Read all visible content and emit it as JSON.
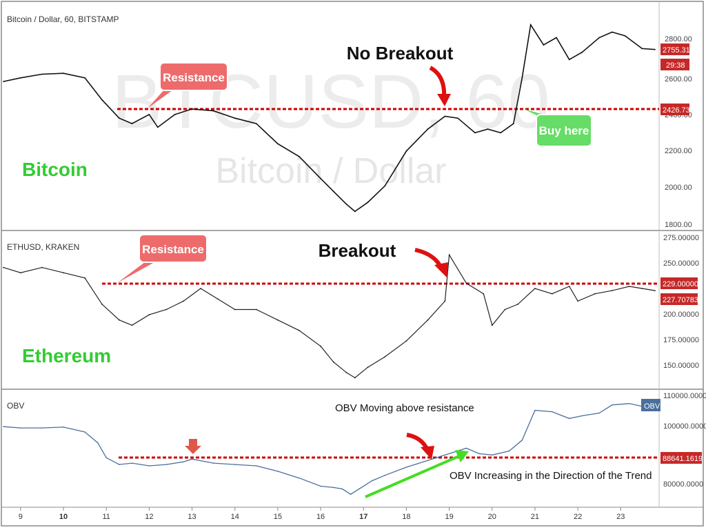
{
  "chart_data": [
    {
      "type": "line",
      "title": "Bitcoin / Dollar, 60, BITSTAMP",
      "watermark": [
        "BTCUSD, 60",
        "Bitcoin / Dollar"
      ],
      "side_label": "Bitcoin",
      "yticks": [
        "2800.00",
        "2600.00",
        "2400.00",
        "2200.00",
        "2000.00",
        "1800.00"
      ],
      "ylim": [
        1800,
        2950
      ],
      "resistance": 2426.73,
      "price_tags": [
        "2755.31",
        "29:38",
        "2426.73"
      ],
      "annotations": [
        "Resistance",
        "No Breakout",
        "Buy here"
      ],
      "x": [
        8.6,
        9.0,
        9.5,
        10.0,
        10.5,
        10.9,
        11.3,
        11.6,
        12.0,
        12.2,
        12.6,
        13.0,
        13.5,
        14.0,
        14.5,
        15.0,
        15.5,
        16.0,
        16.3,
        16.6,
        16.8,
        17.1,
        17.5,
        18.0,
        18.5,
        18.9,
        19.2,
        19.6,
        19.9,
        20.2,
        20.5,
        20.7,
        20.9,
        21.2,
        21.5,
        21.8,
        22.1,
        22.5,
        22.8,
        23.1,
        23.5,
        23.8
      ],
      "y": [
        2580,
        2600,
        2620,
        2625,
        2600,
        2480,
        2380,
        2350,
        2400,
        2330,
        2400,
        2430,
        2420,
        2380,
        2350,
        2240,
        2170,
        2050,
        1980,
        1910,
        1870,
        1920,
        2010,
        2200,
        2320,
        2390,
        2380,
        2300,
        2320,
        2300,
        2350,
        2600,
        2890,
        2780,
        2820,
        2700,
        2740,
        2820,
        2850,
        2830,
        2760,
        2755
      ],
      "color": "#000000"
    },
    {
      "type": "line",
      "title": "ETHUSD, KRAKEN",
      "side_label": "Ethereum",
      "yticks": [
        "275.00000",
        "250.00000",
        "200.00000",
        "175.00000",
        "150.00000"
      ],
      "ylim": [
        140,
        278
      ],
      "resistance": 229.0,
      "price_tags": [
        "229.00000",
        "227.70783"
      ],
      "annotations": [
        "Resistance",
        "Breakout"
      ],
      "x": [
        8.6,
        9.0,
        9.5,
        10.0,
        10.5,
        10.9,
        11.3,
        11.6,
        12.0,
        12.4,
        12.8,
        13.2,
        13.6,
        14.0,
        14.5,
        15.0,
        15.5,
        16.0,
        16.3,
        16.6,
        16.8,
        17.1,
        17.5,
        18.0,
        18.5,
        18.9,
        19.0,
        19.4,
        19.8,
        20.0,
        20.3,
        20.6,
        21.0,
        21.4,
        21.8,
        22.0,
        22.4,
        22.8,
        23.2,
        23.5,
        23.8
      ],
      "y": [
        250,
        245,
        250,
        245,
        240,
        215,
        200,
        195,
        205,
        210,
        218,
        230,
        220,
        210,
        210,
        200,
        190,
        175,
        160,
        150,
        145,
        155,
        165,
        180,
        200,
        218,
        262,
        235,
        225,
        195,
        210,
        215,
        230,
        225,
        232,
        218,
        225,
        228,
        232,
        230,
        228
      ],
      "color": "#000000"
    },
    {
      "type": "line",
      "title": "OBV",
      "yticks": [
        "110000.0000",
        "100000.0000",
        "80000.0000"
      ],
      "ylim": [
        73000,
        112000
      ],
      "resistance": 88641.1619,
      "price_tags": [
        "OBV",
        "88641.1619"
      ],
      "annotations": [
        "OBV Moving above resistance",
        "OBV Increasing in the Direction of the Trend"
      ],
      "x": [
        8.6,
        9.0,
        9.5,
        10.0,
        10.5,
        10.8,
        11.0,
        11.3,
        11.6,
        12.0,
        12.4,
        12.8,
        13.0,
        13.5,
        14.0,
        14.5,
        15.0,
        15.5,
        16.0,
        16.3,
        16.5,
        16.7,
        16.9,
        17.2,
        17.5,
        18.0,
        18.5,
        18.8,
        19.1,
        19.4,
        19.7,
        20.0,
        20.4,
        20.7,
        21.0,
        21.4,
        21.8,
        22.1,
        22.5,
        22.8,
        23.2,
        23.5
      ],
      "y": [
        101000,
        100500,
        100500,
        100800,
        99000,
        95000,
        89500,
        87000,
        87500,
        86500,
        87000,
        88000,
        89000,
        87500,
        87000,
        86500,
        84500,
        82000,
        79000,
        78500,
        78000,
        76000,
        78000,
        81000,
        83000,
        86000,
        88500,
        90000,
        91500,
        93000,
        91000,
        90500,
        92000,
        96000,
        107000,
        106500,
        104000,
        105000,
        106000,
        109000,
        109500,
        108500
      ],
      "color": "#4a6f9c"
    }
  ],
  "x_axis": {
    "ticks": [
      "9",
      "10",
      "11",
      "12",
      "13",
      "14",
      "15",
      "16",
      "17",
      "18",
      "19",
      "20",
      "21",
      "22",
      "23"
    ],
    "bold_ticks": [
      "10",
      "17"
    ],
    "xlim": [
      8.6,
      23.8
    ]
  },
  "colors": {
    "resistance": "#cc0000",
    "label_green": "#33cc33",
    "callout_red": "#ee6b6b",
    "callout_green": "#66dd66",
    "arrow_red": "#dd1111",
    "arrow_green": "#44dd22",
    "obv_badge": "#4a6f9c"
  }
}
